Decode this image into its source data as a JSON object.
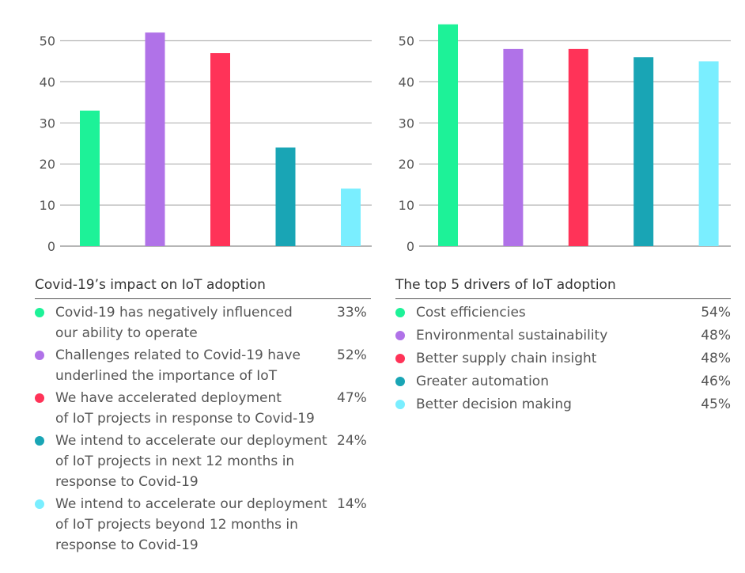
{
  "chart_data": [
    {
      "type": "bar",
      "title": "Covid-19’s impact on IoT adoption",
      "ylim": [
        0,
        50
      ],
      "yticks": [
        0,
        10,
        20,
        30,
        40,
        50
      ],
      "grid": true,
      "categories": [
        "Covid-19 has negatively influenced\nour ability to operate",
        "Challenges related to Covid-19 have\nunderlined the importance of IoT",
        "We have accelerated deployment\nof IoT projects in response to Covid-19",
        "We intend to accelerate our deployment\nof IoT projects in next 12 months in\nresponse to Covid-19",
        "We intend to accelerate our deployment\nof IoT projects beyond 12 months in\nresponse to Covid-19"
      ],
      "values": [
        33,
        52,
        47,
        24,
        14
      ],
      "value_labels": [
        "33%",
        "52%",
        "47%",
        "24%",
        "14%"
      ],
      "colors": [
        "#1df298",
        "#b072e8",
        "#ff3358",
        "#19a5b5",
        "#7aeeff"
      ]
    },
    {
      "type": "bar",
      "title": "The top 5 drivers of IoT adoption",
      "ylim": [
        0,
        50
      ],
      "yticks": [
        0,
        10,
        20,
        30,
        40,
        50
      ],
      "grid": true,
      "categories": [
        "Cost efficiencies",
        "Environmental sustainability",
        "Better supply chain insight",
        "Greater automation",
        "Better decision making"
      ],
      "values": [
        54,
        48,
        48,
        46,
        45
      ],
      "value_labels": [
        "54%",
        "48%",
        "48%",
        "46%",
        "45%"
      ],
      "colors": [
        "#1df298",
        "#b072e8",
        "#ff3358",
        "#19a5b5",
        "#7aeeff"
      ]
    }
  ]
}
